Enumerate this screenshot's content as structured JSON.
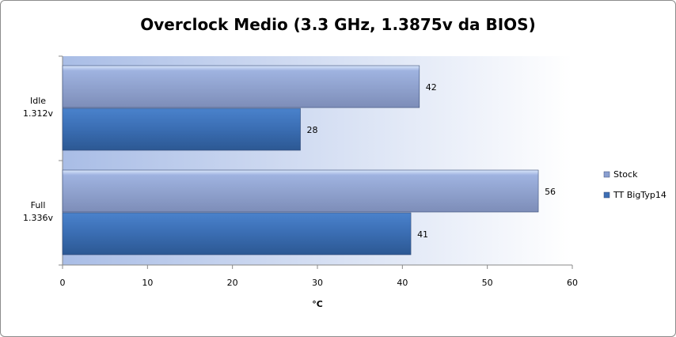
{
  "chart_data": {
    "type": "bar",
    "orientation": "horizontal",
    "title": "Overclock Medio (3.3 GHz, 1.3875v da BIOS)",
    "xlabel": "°C",
    "ylabel": "",
    "categories": [
      "Idle 1.312v",
      "Full 1.336v"
    ],
    "category_lines": [
      [
        "Idle",
        "1.312v"
      ],
      [
        "Full",
        "1.336v"
      ]
    ],
    "series": [
      {
        "name": "Stock",
        "values": [
          42,
          56
        ],
        "color": "#8a9fd0"
      },
      {
        "name": "TT BigTyp14",
        "values": [
          28,
          41
        ],
        "color": "#3d6fb4"
      }
    ],
    "xlim": [
      0,
      60
    ],
    "xticks": [
      0,
      10,
      20,
      30,
      40,
      50,
      60
    ],
    "grid": false,
    "legend": "right",
    "data_labels": true
  }
}
